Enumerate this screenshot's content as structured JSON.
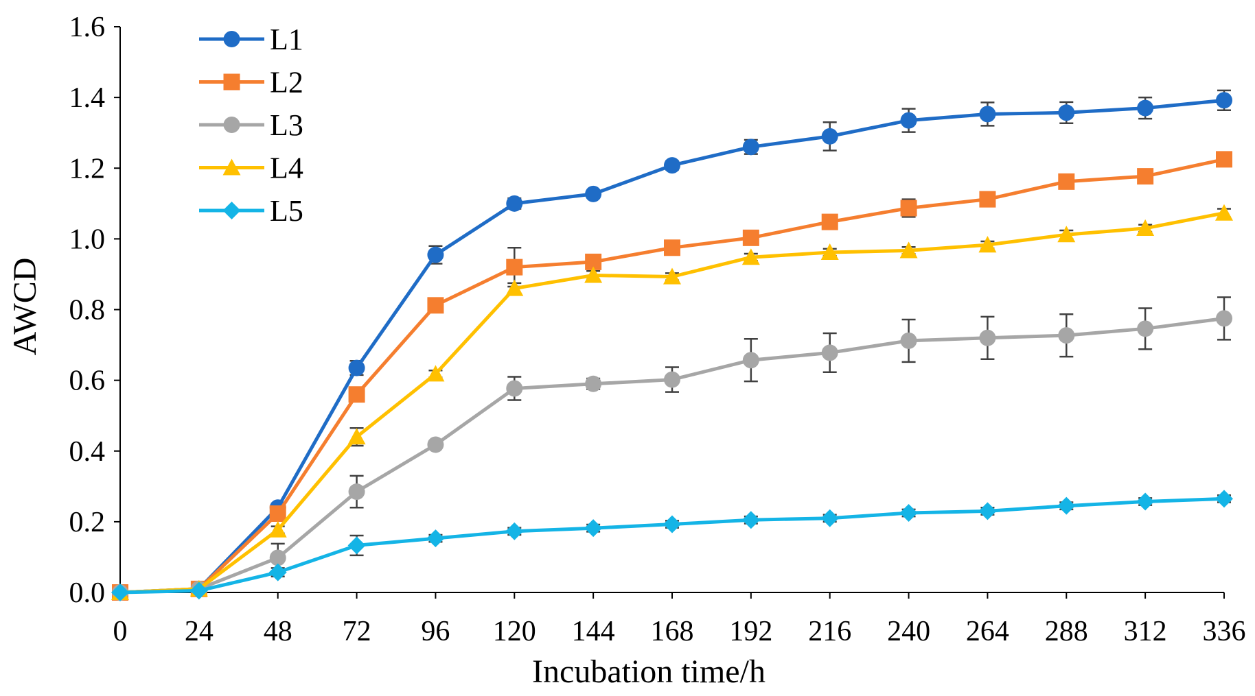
{
  "chart_data": {
    "type": "line",
    "title": "",
    "xlabel": "Incubation time/h",
    "ylabel": "AWCD",
    "x": [
      0,
      24,
      48,
      72,
      96,
      120,
      144,
      168,
      192,
      216,
      240,
      264,
      288,
      312,
      336
    ],
    "x_tick_labels": [
      "0",
      "24",
      "48",
      "72",
      "96",
      "120",
      "144",
      "168",
      "192",
      "216",
      "240",
      "264",
      "288",
      "312",
      "336"
    ],
    "y_tick_labels": [
      "0.0",
      "0.2",
      "0.4",
      "0.6",
      "0.8",
      "1.0",
      "1.2",
      "1.4",
      "1.6"
    ],
    "xlim": [
      0,
      336
    ],
    "ylim": [
      0,
      1.6
    ],
    "legend_position": "top-left",
    "series": [
      {
        "name": "L1",
        "color": "#1F6CC6",
        "marker": "circle",
        "values": [
          0.0,
          0.01,
          0.24,
          0.635,
          0.955,
          1.1,
          1.127,
          1.208,
          1.26,
          1.29,
          1.335,
          1.353,
          1.357,
          1.37,
          1.392
        ],
        "errors": [
          0.0,
          0.0,
          0.012,
          0.02,
          0.025,
          0.015,
          0.01,
          0.012,
          0.02,
          0.04,
          0.033,
          0.033,
          0.03,
          0.03,
          0.028
        ]
      },
      {
        "name": "L2",
        "color": "#F57E2F",
        "marker": "square",
        "values": [
          0.0,
          0.01,
          0.223,
          0.56,
          0.812,
          0.92,
          0.935,
          0.975,
          1.003,
          1.048,
          1.087,
          1.112,
          1.162,
          1.177,
          1.225
        ],
        "errors": [
          0.0,
          0.0,
          0.012,
          0.02,
          0.012,
          0.055,
          0.012,
          0.012,
          0.012,
          0.012,
          0.025,
          0.012,
          0.012,
          0.012,
          0.012
        ]
      },
      {
        "name": "L3",
        "color": "#A6A6A6",
        "marker": "circle",
        "values": [
          0.0,
          0.01,
          0.098,
          0.285,
          0.418,
          0.577,
          0.59,
          0.602,
          0.657,
          0.678,
          0.712,
          0.72,
          0.727,
          0.746,
          0.775
        ],
        "errors": [
          0.0,
          0.0,
          0.04,
          0.045,
          0.01,
          0.033,
          0.015,
          0.035,
          0.06,
          0.055,
          0.06,
          0.06,
          0.06,
          0.058,
          0.06
        ]
      },
      {
        "name": "L4",
        "color": "#FFC000",
        "marker": "triangle",
        "values": [
          0.0,
          0.01,
          0.177,
          0.44,
          0.618,
          0.86,
          0.897,
          0.893,
          0.948,
          0.962,
          0.967,
          0.983,
          1.012,
          1.03,
          1.073
        ],
        "errors": [
          0.0,
          0.0,
          0.01,
          0.025,
          0.01,
          0.015,
          0.012,
          0.01,
          0.01,
          0.01,
          0.01,
          0.01,
          0.012,
          0.01,
          0.012
        ]
      },
      {
        "name": "L5",
        "color": "#14B4E6",
        "marker": "diamond",
        "values": [
          0.0,
          0.005,
          0.057,
          0.133,
          0.153,
          0.173,
          0.182,
          0.193,
          0.205,
          0.21,
          0.225,
          0.23,
          0.245,
          0.257,
          0.265
        ],
        "errors": [
          0.0,
          0.0,
          0.012,
          0.028,
          0.01,
          0.01,
          0.01,
          0.01,
          0.01,
          0.01,
          0.01,
          0.01,
          0.01,
          0.01,
          0.01
        ]
      }
    ]
  }
}
